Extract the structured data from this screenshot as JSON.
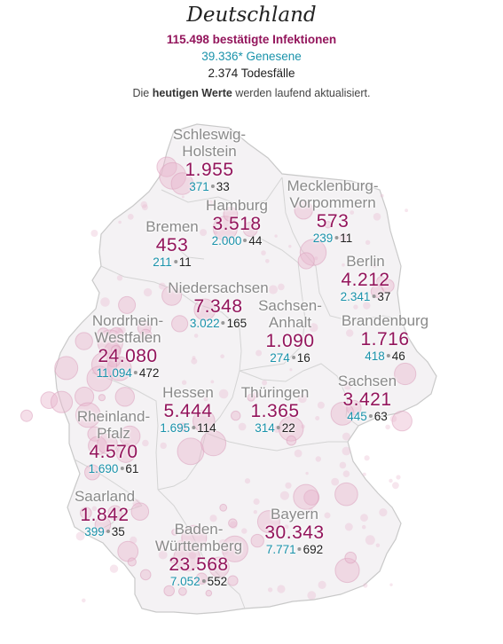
{
  "header": {
    "title": "Deutschland",
    "infected": "115.498 bestätigte Infektionen",
    "recovered": "39.336* Genesene",
    "deaths": "2.374 Todesfälle",
    "note_prefix": "Die",
    "note_bold": "heutigen Werte",
    "note_suffix": "werden laufend aktualisiert."
  },
  "colors": {
    "infected": "#93155c",
    "recovered": "#1a93ab",
    "deaths": "#222222",
    "map_fill": "#f4f2f4",
    "map_border": "#c9c9c9",
    "bubble": "#e8b8cf"
  },
  "states": [
    {
      "name": "Schleswig-\nHolstein",
      "infected": "1.955",
      "recovered": "371",
      "deaths": "33"
    },
    {
      "name": "Mecklenburg-\nVorpommern",
      "infected": "573",
      "recovered": "239",
      "deaths": "11"
    },
    {
      "name": "Hamburg",
      "infected": "3.518",
      "recovered": "2.000",
      "deaths": "44"
    },
    {
      "name": "Bremen",
      "infected": "453",
      "recovered": "211",
      "deaths": "11"
    },
    {
      "name": "Berlin",
      "infected": "4.212",
      "recovered": "2.341",
      "deaths": "37"
    },
    {
      "name": "Niedersachsen",
      "infected": "7.348",
      "recovered": "3.022",
      "deaths": "165"
    },
    {
      "name": "Sachsen-\nAnhalt",
      "infected": "1.090",
      "recovered": "274",
      "deaths": "16"
    },
    {
      "name": "Brandenburg",
      "infected": "1.716",
      "recovered": "418",
      "deaths": "46"
    },
    {
      "name": "Nordrhein-\nWestfalen",
      "infected": "24.080",
      "recovered": "11.094",
      "deaths": "472"
    },
    {
      "name": "Sachsen",
      "infected": "3.421",
      "recovered": "445",
      "deaths": "63"
    },
    {
      "name": "Hessen",
      "infected": "5.444",
      "recovered": "1.695",
      "deaths": "114"
    },
    {
      "name": "Thüringen",
      "infected": "1.365",
      "recovered": "314",
      "deaths": "22"
    },
    {
      "name": "Rheinland-\nPfalz",
      "infected": "4.570",
      "recovered": "1.690",
      "deaths": "61"
    },
    {
      "name": "Saarland",
      "infected": "1.842",
      "recovered": "399",
      "deaths": "35"
    },
    {
      "name": "Bayern",
      "infected": "30.343",
      "recovered": "7.771",
      "deaths": "692"
    },
    {
      "name": "Baden-\nWürttemberg",
      "infected": "23.568",
      "recovered": "7.052",
      "deaths": "552"
    }
  ]
}
